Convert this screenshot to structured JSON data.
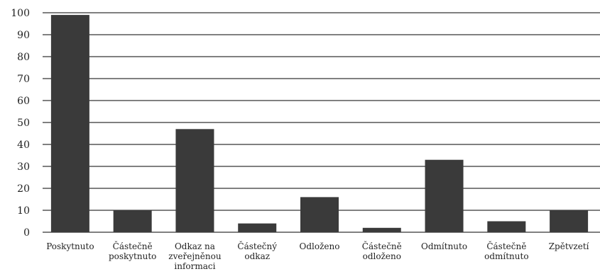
{
  "chart_data": {
    "type": "bar",
    "title": "",
    "xlabel": "",
    "ylabel": "",
    "ylim": [
      0,
      100
    ],
    "yticks": [
      0,
      10,
      20,
      30,
      40,
      50,
      60,
      70,
      80,
      90,
      100
    ],
    "grid": true,
    "categories": [
      [
        "Poskytnuto"
      ],
      [
        "Částečně",
        "poskytnuto"
      ],
      [
        "Odkaz na",
        "zveřejněnou",
        "informaci"
      ],
      [
        "Částečný",
        "odkaz"
      ],
      [
        "Odloženo"
      ],
      [
        "Částečně",
        "odloženo"
      ],
      [
        "Odmítnuto"
      ],
      [
        "Částečně",
        "odmítnuto"
      ],
      [
        "Zpětvzetí"
      ]
    ],
    "values": [
      99,
      10,
      47,
      4,
      16,
      2,
      33,
      5,
      10
    ],
    "colors": {
      "bar": "#3a3a3a",
      "grid": "#000000",
      "text": "#222222"
    }
  }
}
